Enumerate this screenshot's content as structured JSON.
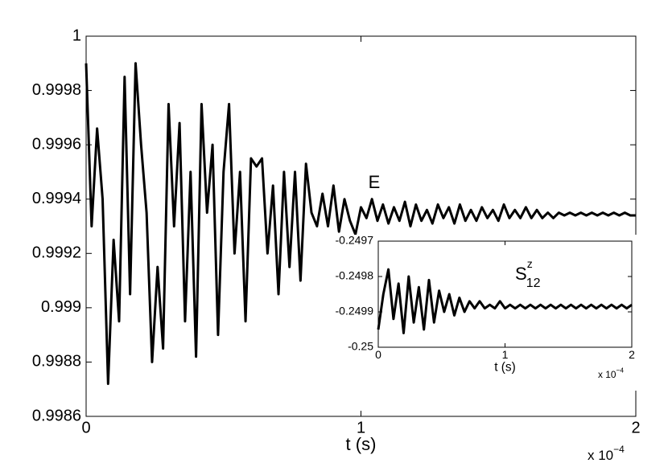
{
  "chart_data": [
    {
      "type": "line",
      "annotation": "E",
      "x_label": "t (s)",
      "x_exponent_label": {
        "base": "x 10",
        "exponent": "−4"
      },
      "xlim": [
        0,
        2
      ],
      "xticks": [
        0,
        1,
        2
      ],
      "ylim": [
        0.9986,
        1
      ],
      "yticks": [
        0.9986,
        0.9988,
        0.999,
        0.9992,
        0.9994,
        0.9996,
        0.9998,
        1
      ],
      "color": "#000000",
      "x": [
        0,
        0.02,
        0.04,
        0.06,
        0.08,
        0.1,
        0.12,
        0.14,
        0.16,
        0.18,
        0.2,
        0.22,
        0.24,
        0.26,
        0.28,
        0.3,
        0.32,
        0.34,
        0.36,
        0.38,
        0.4,
        0.42,
        0.44,
        0.46,
        0.48,
        0.5,
        0.52,
        0.54,
        0.56,
        0.58,
        0.6,
        0.62,
        0.64,
        0.66,
        0.68,
        0.7,
        0.72,
        0.74,
        0.76,
        0.78,
        0.8,
        0.82,
        0.84,
        0.86,
        0.88,
        0.9,
        0.92,
        0.94,
        0.96,
        0.98,
        1,
        1.02,
        1.04,
        1.06,
        1.08,
        1.1,
        1.12,
        1.14,
        1.16,
        1.18,
        1.2,
        1.22,
        1.24,
        1.26,
        1.28,
        1.3,
        1.32,
        1.34,
        1.36,
        1.38,
        1.4,
        1.42,
        1.44,
        1.46,
        1.48,
        1.5,
        1.52,
        1.54,
        1.56,
        1.58,
        1.6,
        1.62,
        1.64,
        1.66,
        1.68,
        1.7,
        1.72,
        1.74,
        1.76,
        1.78,
        1.8,
        1.82,
        1.84,
        1.86,
        1.88,
        1.9,
        1.92,
        1.94,
        1.96,
        1.98,
        2
      ],
      "values": [
        0.9999,
        0.9993,
        0.99966,
        0.9994,
        0.99872,
        0.99925,
        0.99895,
        0.99985,
        0.99905,
        0.9999,
        0.9996,
        0.99935,
        0.9988,
        0.99915,
        0.99885,
        0.99975,
        0.9993,
        0.99968,
        0.99895,
        0.9995,
        0.99882,
        0.99975,
        0.99935,
        0.9996,
        0.9989,
        0.9995,
        0.99975,
        0.9992,
        0.9995,
        0.99895,
        0.99955,
        0.99952,
        0.99955,
        0.9992,
        0.99945,
        0.99905,
        0.9995,
        0.99915,
        0.9995,
        0.9991,
        0.99953,
        0.99935,
        0.9993,
        0.99942,
        0.9993,
        0.99945,
        0.99928,
        0.9994,
        0.99932,
        0.99927,
        0.99937,
        0.99933,
        0.9994,
        0.99932,
        0.99938,
        0.99931,
        0.99937,
        0.99932,
        0.99939,
        0.9993,
        0.99938,
        0.99932,
        0.99936,
        0.99931,
        0.99938,
        0.99933,
        0.99937,
        0.99931,
        0.99938,
        0.99932,
        0.99936,
        0.99932,
        0.99937,
        0.99933,
        0.99936,
        0.99932,
        0.99938,
        0.99933,
        0.99936,
        0.99933,
        0.99937,
        0.99933,
        0.99936,
        0.99933,
        0.99935,
        0.99933,
        0.99935,
        0.99934,
        0.99935,
        0.99934,
        0.99935,
        0.99934,
        0.99935,
        0.99934,
        0.99935,
        0.99934,
        0.99935,
        0.99934,
        0.99935,
        0.99934,
        0.99934
      ]
    },
    {
      "type": "line",
      "x_label": "t (s)",
      "label": {
        "base": "S",
        "sup": "z",
        "sub": "12"
      },
      "x_exponent_label": {
        "base": "x 10",
        "exponent": "−4"
      },
      "xlim": [
        0,
        2
      ],
      "xticks": [
        0,
        1,
        2
      ],
      "ylim": [
        -0.25,
        -0.2497
      ],
      "yticks": [
        -0.25,
        -0.2499,
        -0.2498,
        -0.2497
      ],
      "color": "#000000",
      "x": [
        0,
        0.04,
        0.08,
        0.12,
        0.16,
        0.2,
        0.24,
        0.28,
        0.32,
        0.36,
        0.4,
        0.44,
        0.48,
        0.52,
        0.56,
        0.6,
        0.64,
        0.68,
        0.72,
        0.76,
        0.8,
        0.84,
        0.88,
        0.92,
        0.96,
        1,
        1.04,
        1.08,
        1.12,
        1.16,
        1.2,
        1.24,
        1.28,
        1.32,
        1.36,
        1.4,
        1.44,
        1.48,
        1.52,
        1.56,
        1.6,
        1.64,
        1.68,
        1.72,
        1.76,
        1.8,
        1.84,
        1.88,
        1.92,
        1.96,
        2
      ],
      "values": [
        -0.24995,
        -0.24985,
        -0.24978,
        -0.24992,
        -0.24982,
        -0.24996,
        -0.2498,
        -0.24993,
        -0.24983,
        -0.24995,
        -0.24981,
        -0.24993,
        -0.24984,
        -0.2499,
        -0.24985,
        -0.24991,
        -0.24986,
        -0.2499,
        -0.24987,
        -0.24989,
        -0.24987,
        -0.24989,
        -0.24988,
        -0.24989,
        -0.24987,
        -0.24989,
        -0.24988,
        -0.24989,
        -0.24988,
        -0.24989,
        -0.24988,
        -0.24989,
        -0.24988,
        -0.24989,
        -0.24988,
        -0.24989,
        -0.24988,
        -0.24989,
        -0.24988,
        -0.24989,
        -0.24988,
        -0.24989,
        -0.24988,
        -0.24989,
        -0.24988,
        -0.24989,
        -0.24988,
        -0.24989,
        -0.24988,
        -0.24989,
        -0.24988
      ]
    }
  ]
}
